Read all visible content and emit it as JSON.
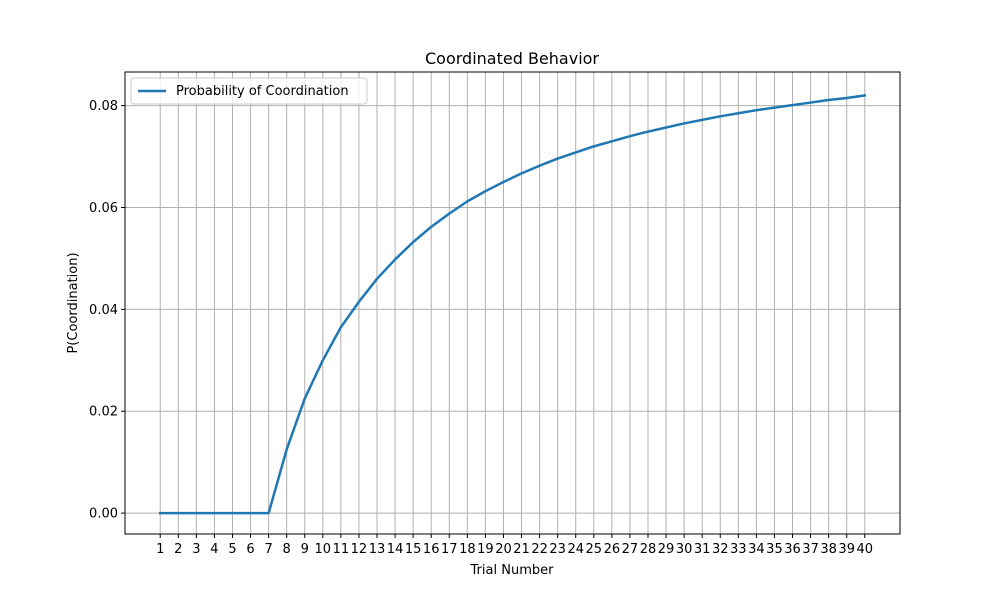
{
  "chart_data": {
    "type": "line",
    "title": "Coordinated Behavior",
    "xlabel": "Trial Number",
    "ylabel": "P(Coordination)",
    "x": [
      1,
      2,
      3,
      4,
      5,
      6,
      7,
      8,
      9,
      10,
      11,
      12,
      13,
      14,
      15,
      16,
      17,
      18,
      19,
      20,
      21,
      22,
      23,
      24,
      25,
      26,
      27,
      28,
      29,
      30,
      31,
      32,
      33,
      34,
      35,
      36,
      37,
      38,
      39,
      40
    ],
    "series": [
      {
        "name": "Probability of Coordination",
        "color": "#1f77b4",
        "values": [
          0,
          0,
          0,
          0,
          0,
          0,
          0,
          0.0125,
          0.0225,
          0.03,
          0.0365,
          0.0415,
          0.046,
          0.0498,
          0.0532,
          0.0562,
          0.0588,
          0.0612,
          0.0632,
          0.065,
          0.0667,
          0.0682,
          0.0696,
          0.0708,
          0.072,
          0.073,
          0.074,
          0.0749,
          0.0757,
          0.0765,
          0.0772,
          0.0779,
          0.0785,
          0.0791,
          0.0796,
          0.0801,
          0.0806,
          0.0811,
          0.0815,
          0.082
        ]
      }
    ],
    "xticks": [
      1,
      2,
      3,
      4,
      5,
      6,
      7,
      8,
      9,
      10,
      11,
      12,
      13,
      14,
      15,
      16,
      17,
      18,
      19,
      20,
      21,
      22,
      23,
      24,
      25,
      26,
      27,
      28,
      29,
      30,
      31,
      32,
      33,
      34,
      35,
      36,
      37,
      38,
      39,
      40
    ],
    "yticks": [
      0.0,
      0.02,
      0.04,
      0.06,
      0.08
    ],
    "ytick_labels": [
      "0.00",
      "0.02",
      "0.04",
      "0.06",
      "0.08"
    ],
    "xlim": [
      -0.95,
      41.95
    ],
    "ylim": [
      -0.0041,
      0.0866
    ],
    "grid": true,
    "legend_position": "upper-left"
  }
}
